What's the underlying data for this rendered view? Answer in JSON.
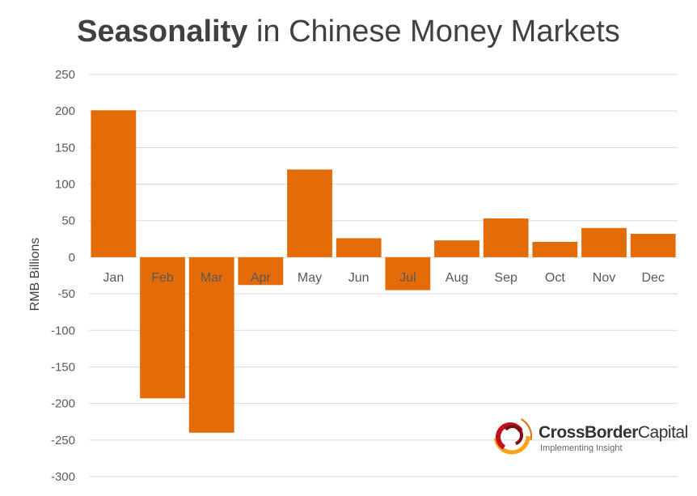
{
  "chart_data": {
    "type": "bar",
    "title_bold": "Seasonality",
    "title_rest": " in Chinese Money Markets",
    "xlabel": "",
    "ylabel": "RMB Billions",
    "categories": [
      "Jan",
      "Feb",
      "Mar",
      "Apr",
      "May",
      "Jun",
      "Jul",
      "Aug",
      "Sep",
      "Oct",
      "Nov",
      "Dec"
    ],
    "series": [
      {
        "values": [
          201,
          -193,
          -240,
          -38,
          120,
          26,
          -45,
          23,
          53,
          21,
          40,
          32
        ]
      }
    ],
    "ylim": [
      -300,
      250
    ],
    "yticks": [
      250,
      200,
      150,
      100,
      50,
      0,
      -50,
      -100,
      -150,
      -200,
      -250,
      -300
    ],
    "grid": true,
    "bar_color": "#E36C09"
  },
  "logo": {
    "name_bold": "CrossBorder",
    "name_rest": "Capital",
    "tagline": "Implementing Insight"
  }
}
